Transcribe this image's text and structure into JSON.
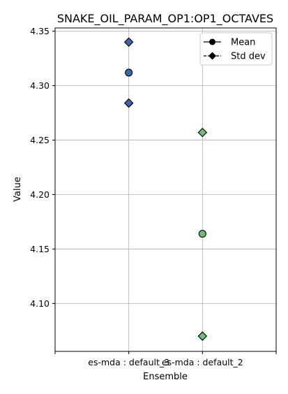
{
  "chart_data": {
    "type": "scatter",
    "title": "SNAKE_OIL_PARAM_OP1:OP1_OCTAVES",
    "xlabel": "Ensemble",
    "ylabel": "Value",
    "categories": [
      "es-mda : default_3",
      "es-mda : default_2"
    ],
    "ylim": [
      4.056,
      4.353
    ],
    "yticks": [
      "4.10",
      "4.15",
      "4.20",
      "4.25",
      "4.30",
      "4.35"
    ],
    "grid": true,
    "legend_position": "top-right",
    "legend": [
      {
        "label": "Mean",
        "marker": "circle"
      },
      {
        "label": "Std dev",
        "marker": "diamond"
      }
    ],
    "points": [
      {
        "category": "es-mda : default_3",
        "mean": 4.312,
        "std_upper": 4.34,
        "std_lower": 4.284,
        "color": "#3b67ad"
      },
      {
        "category": "es-mda : default_2",
        "mean": 4.164,
        "std_upper": 4.257,
        "std_lower": 4.07,
        "color": "#6fbf70"
      }
    ]
  }
}
